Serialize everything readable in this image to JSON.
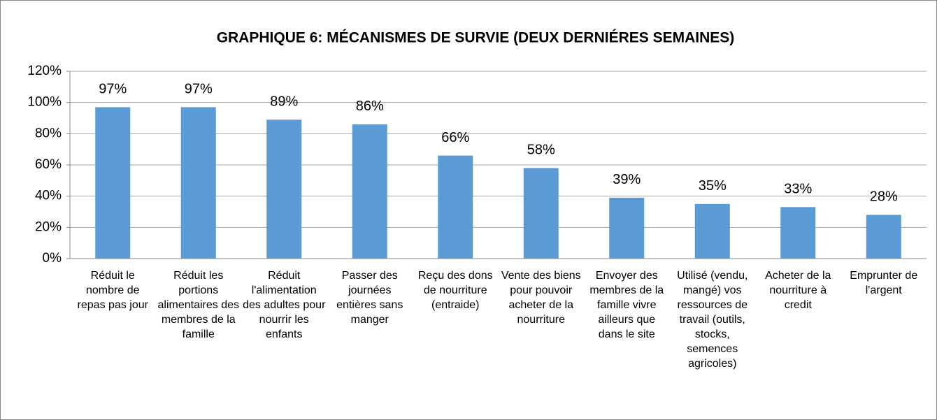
{
  "chart_data": {
    "type": "bar",
    "title": "GRAPHIQUE 6: MÉCANISMES DE SURVIE (DEUX DERNIÉRES SEMAINES)",
    "categories": [
      "Réduit le nombre de repas pas jour",
      "Réduit les portions alimentaires des membres de la famille",
      "Réduit l'alimentation des adultes pour nourrir les enfants",
      "Passer des journées entières sans manger",
      "Reçu des dons de nourriture (entraide)",
      "Vente des biens pour pouvoir acheter de la nourriture",
      "Envoyer des membres de la famille vivre ailleurs que dans le site",
      "Utilisé (vendu, mangé) vos ressources de travail (outils, stocks, semences agricoles)",
      "Acheter de la nourriture à credit",
      "Emprunter de l'argent"
    ],
    "values": [
      97,
      97,
      89,
      86,
      66,
      58,
      39,
      35,
      33,
      28
    ],
    "value_labels": [
      "97%",
      "97%",
      "89%",
      "86%",
      "66%",
      "58%",
      "39%",
      "35%",
      "33%",
      "28%"
    ],
    "color": "#5b9bd5",
    "ylim": [
      0,
      120
    ],
    "yticks": [
      {
        "value": 0,
        "label": "0%"
      },
      {
        "value": 20,
        "label": "20%"
      },
      {
        "value": 40,
        "label": "40%"
      },
      {
        "value": 60,
        "label": "60%"
      },
      {
        "value": 80,
        "label": "80%"
      },
      {
        "value": 100,
        "label": "100%"
      },
      {
        "value": 120,
        "label": "120%"
      }
    ],
    "grid": true
  }
}
